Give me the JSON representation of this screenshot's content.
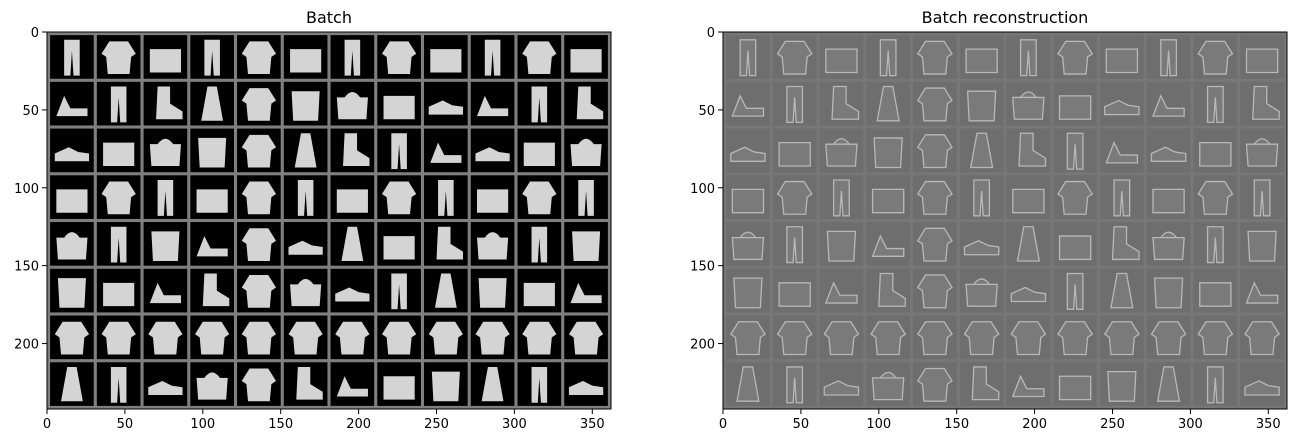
{
  "chart_data": [
    {
      "type": "image",
      "title": "Batch",
      "xlabel": "",
      "ylabel": "",
      "xlim": [
        0,
        362
      ],
      "ylim": [
        242,
        0
      ],
      "xticks": [
        0,
        50,
        100,
        150,
        200,
        250,
        300,
        350
      ],
      "yticks": [
        0,
        50,
        100,
        150,
        200
      ],
      "grid": {
        "rows": 8,
        "cols": 12,
        "cell_size": 28,
        "padding": 2
      },
      "colors": {
        "background": "#000000",
        "grid_line": "#7f7f7f",
        "item": "#d4d4d4"
      }
    },
    {
      "type": "image",
      "title": "Batch reconstruction",
      "xlabel": "",
      "ylabel": "",
      "xlim": [
        0,
        362
      ],
      "ylim": [
        242,
        0
      ],
      "xticks": [
        0,
        50,
        100,
        150,
        200,
        250,
        300,
        350
      ],
      "yticks": [
        0,
        50,
        100,
        150,
        200
      ],
      "grid": {
        "rows": 8,
        "cols": 12,
        "cell_size": 28,
        "padding": 2
      },
      "colors": {
        "background": "#6e6e6e",
        "grid_line": "#777777",
        "item": "#b8b8b8"
      }
    }
  ]
}
